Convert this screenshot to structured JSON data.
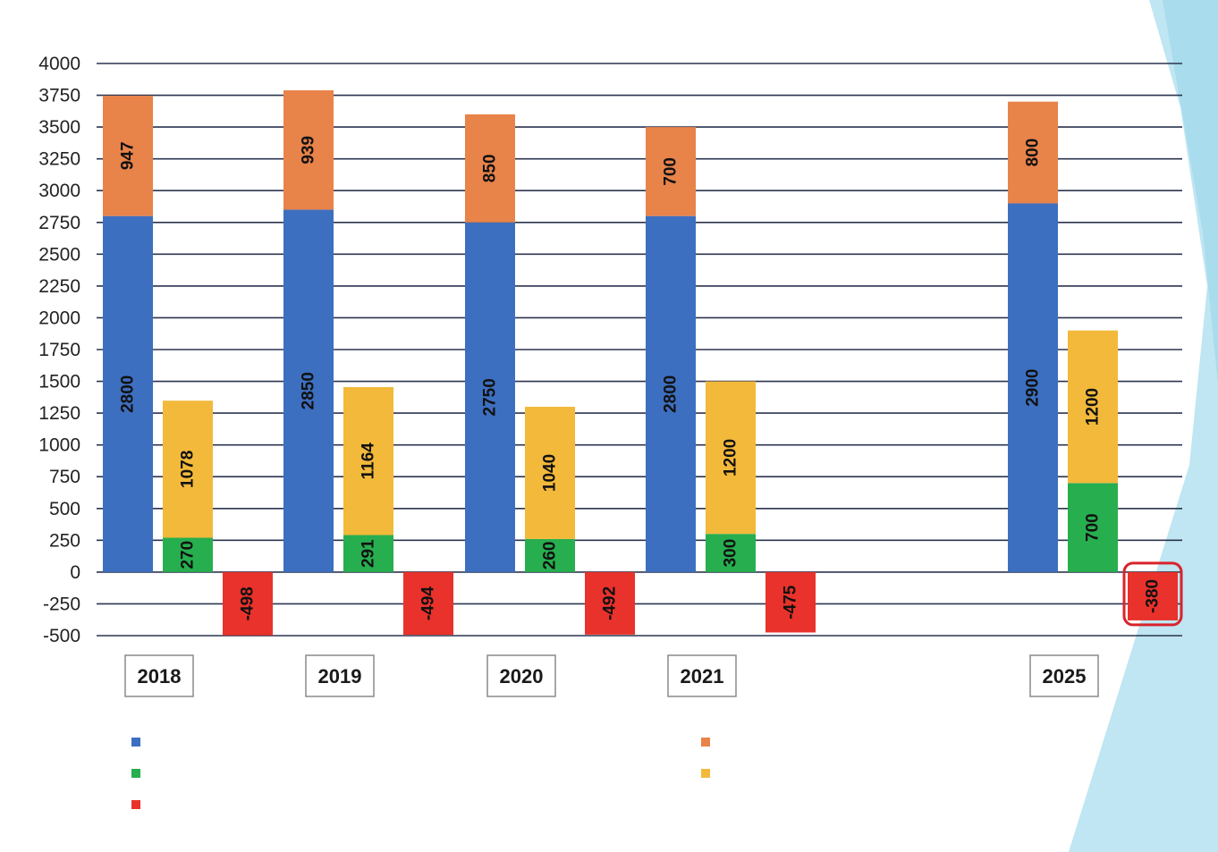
{
  "chart_data": {
    "type": "bar",
    "categories": [
      "2018",
      "2019",
      "2020",
      "2021",
      "2025"
    ],
    "series": [
      {
        "color": "#3d6fc0",
        "values": [
          2800,
          2850,
          2750,
          2800,
          2900
        ]
      },
      {
        "color": "#e8834a",
        "values": [
          947,
          939,
          850,
          700,
          800
        ]
      },
      {
        "color": "#27ae4f",
        "values": [
          270,
          291,
          260,
          300,
          700
        ]
      },
      {
        "color": "#f2b93b",
        "values": [
          1078,
          1164,
          1040,
          1200,
          1200
        ]
      },
      {
        "color": "#e8322b",
        "values": [
          -498,
          -494,
          -492,
          -475,
          -380
        ]
      }
    ],
    "stacking": [
      [
        0,
        1
      ],
      [
        2,
        3
      ],
      [
        4
      ]
    ],
    "yticks": [
      4000,
      3750,
      3500,
      3250,
      3000,
      2750,
      2500,
      2250,
      2000,
      1750,
      1500,
      1250,
      1000,
      750,
      500,
      250,
      0,
      -250,
      -500
    ],
    "ylim": [
      -500,
      4000
    ],
    "grid": true,
    "legend": {
      "placement": "bottom",
      "entries": [
        {
          "color": "#3d6fc0"
        },
        {
          "color": "#e8834a"
        },
        {
          "color": "#27ae4f"
        },
        {
          "color": "#f2b93b"
        },
        {
          "color": "#e8322b"
        }
      ]
    },
    "highlight": {
      "category": "2025",
      "series_index": 4,
      "color": "#d9232d"
    },
    "title": "",
    "xlabel": "",
    "ylabel": ""
  }
}
